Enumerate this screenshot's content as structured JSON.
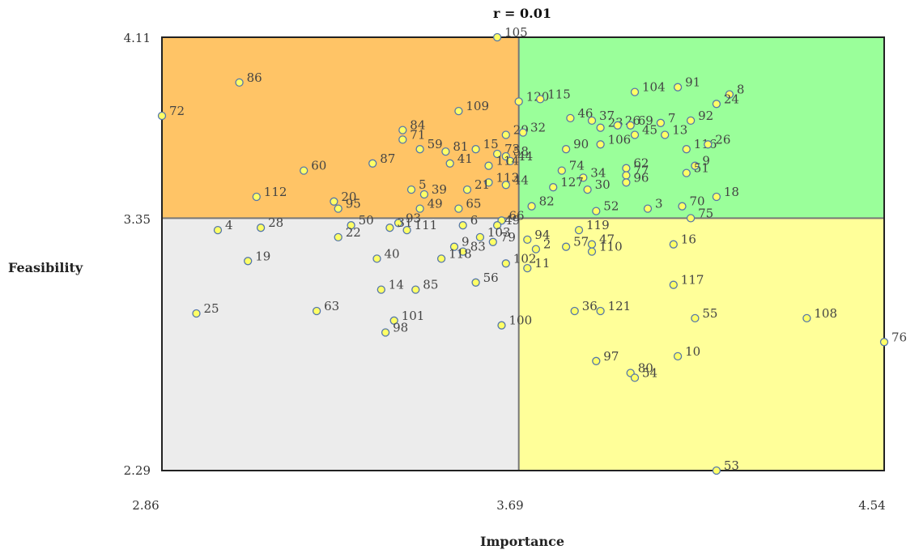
{
  "chart_data": {
    "type": "scatter",
    "title": "r = 0.01",
    "xlabel": "Importance",
    "ylabel": "Feasibility",
    "xlim": [
      2.86,
      4.54
    ],
    "ylim": [
      2.29,
      4.11
    ],
    "x_ticks": [
      "2.86",
      "3.69",
      "4.54"
    ],
    "y_ticks": [
      "4.11",
      "3.35",
      "2.29"
    ],
    "x_mean": 3.69,
    "y_mean": 3.35,
    "grid": false,
    "legend": "none",
    "quadrant_colors": {
      "top_left": "#ffc466",
      "top_right": "#9aff9a",
      "bottom_left": "#ececec",
      "bottom_right": "#ffff99"
    },
    "point_fill": "#ffff66",
    "point_stroke": "#5577aa",
    "points": [
      {
        "label": "105",
        "x": 3.64,
        "y": 4.11
      },
      {
        "label": "86",
        "x": 3.04,
        "y": 3.92
      },
      {
        "label": "72",
        "x": 2.86,
        "y": 3.78
      },
      {
        "label": "109",
        "x": 3.55,
        "y": 3.8
      },
      {
        "label": "120",
        "x": 3.69,
        "y": 3.84
      },
      {
        "label": "115",
        "x": 3.74,
        "y": 3.85
      },
      {
        "label": "104",
        "x": 3.96,
        "y": 3.88
      },
      {
        "label": "91",
        "x": 4.06,
        "y": 3.9
      },
      {
        "label": "8",
        "x": 4.18,
        "y": 3.87
      },
      {
        "label": "24",
        "x": 4.15,
        "y": 3.83
      },
      {
        "label": "84",
        "x": 3.42,
        "y": 3.72
      },
      {
        "label": "71",
        "x": 3.42,
        "y": 3.68
      },
      {
        "label": "46",
        "x": 3.81,
        "y": 3.77
      },
      {
        "label": "37",
        "x": 3.86,
        "y": 3.76
      },
      {
        "label": "23",
        "x": 3.88,
        "y": 3.73
      },
      {
        "label": "26",
        "x": 3.92,
        "y": 3.74
      },
      {
        "label": "69",
        "x": 3.95,
        "y": 3.74
      },
      {
        "label": "7",
        "x": 4.02,
        "y": 3.75
      },
      {
        "label": "92",
        "x": 4.09,
        "y": 3.76
      },
      {
        "label": "29",
        "x": 3.66,
        "y": 3.7
      },
      {
        "label": "32",
        "x": 3.7,
        "y": 3.71
      },
      {
        "label": "13",
        "x": 4.03,
        "y": 3.7
      },
      {
        "label": "45",
        "x": 3.96,
        "y": 3.7
      },
      {
        "label": "59",
        "x": 3.46,
        "y": 3.64
      },
      {
        "label": "81",
        "x": 3.52,
        "y": 3.63
      },
      {
        "label": "15",
        "x": 3.59,
        "y": 3.64
      },
      {
        "label": "73",
        "x": 3.64,
        "y": 3.62
      },
      {
        "label": "58",
        "x": 3.66,
        "y": 3.61
      },
      {
        "label": "90",
        "x": 3.8,
        "y": 3.64
      },
      {
        "label": "106",
        "x": 3.88,
        "y": 3.66
      },
      {
        "label": "116",
        "x": 4.08,
        "y": 3.64
      },
      {
        "label": "26",
        "x": 4.13,
        "y": 3.66
      },
      {
        "label": "87",
        "x": 3.35,
        "y": 3.58
      },
      {
        "label": "60",
        "x": 3.19,
        "y": 3.55
      },
      {
        "label": "41",
        "x": 3.53,
        "y": 3.58
      },
      {
        "label": "44",
        "x": 3.67,
        "y": 3.59
      },
      {
        "label": "114",
        "x": 3.62,
        "y": 3.57
      },
      {
        "label": "74",
        "x": 3.79,
        "y": 3.55
      },
      {
        "label": "62",
        "x": 3.94,
        "y": 3.56
      },
      {
        "label": "9",
        "x": 4.1,
        "y": 3.57
      },
      {
        "label": "51",
        "x": 4.08,
        "y": 3.54
      },
      {
        "label": "34",
        "x": 3.84,
        "y": 3.52
      },
      {
        "label": "77",
        "x": 3.94,
        "y": 3.53
      },
      {
        "label": "96",
        "x": 3.94,
        "y": 3.5
      },
      {
        "label": "113",
        "x": 3.62,
        "y": 3.5
      },
      {
        "label": "44",
        "x": 3.66,
        "y": 3.49
      },
      {
        "label": "127",
        "x": 3.77,
        "y": 3.48
      },
      {
        "label": "30",
        "x": 3.85,
        "y": 3.47
      },
      {
        "label": "18",
        "x": 4.15,
        "y": 3.44
      },
      {
        "label": "5",
        "x": 3.44,
        "y": 3.47
      },
      {
        "label": "39",
        "x": 3.47,
        "y": 3.45
      },
      {
        "label": "21",
        "x": 3.57,
        "y": 3.47
      },
      {
        "label": "112",
        "x": 3.08,
        "y": 3.44
      },
      {
        "label": "20",
        "x": 3.26,
        "y": 3.42
      },
      {
        "label": "95",
        "x": 3.27,
        "y": 3.39
      },
      {
        "label": "49",
        "x": 3.46,
        "y": 3.39
      },
      {
        "label": "65",
        "x": 3.55,
        "y": 3.39
      },
      {
        "label": "82",
        "x": 3.72,
        "y": 3.4
      },
      {
        "label": "52",
        "x": 3.87,
        "y": 3.38
      },
      {
        "label": "3",
        "x": 3.99,
        "y": 3.39
      },
      {
        "label": "70",
        "x": 4.07,
        "y": 3.4
      },
      {
        "label": "75",
        "x": 4.09,
        "y": 3.35
      },
      {
        "label": "4",
        "x": 2.99,
        "y": 3.3
      },
      {
        "label": "28",
        "x": 3.09,
        "y": 3.31
      },
      {
        "label": "50",
        "x": 3.3,
        "y": 3.32
      },
      {
        "label": "93",
        "x": 3.41,
        "y": 3.33
      },
      {
        "label": "31",
        "x": 3.39,
        "y": 3.31
      },
      {
        "label": "111",
        "x": 3.43,
        "y": 3.3
      },
      {
        "label": "22",
        "x": 3.27,
        "y": 3.27
      },
      {
        "label": "6",
        "x": 3.56,
        "y": 3.32
      },
      {
        "label": "66",
        "x": 3.65,
        "y": 3.34
      },
      {
        "label": "49",
        "x": 3.64,
        "y": 3.32
      },
      {
        "label": "119",
        "x": 3.83,
        "y": 3.3
      },
      {
        "label": "103",
        "x": 3.6,
        "y": 3.27
      },
      {
        "label": "79",
        "x": 3.63,
        "y": 3.25
      },
      {
        "label": "94",
        "x": 3.71,
        "y": 3.26
      },
      {
        "label": "9",
        "x": 3.54,
        "y": 3.23
      },
      {
        "label": "83",
        "x": 3.56,
        "y": 3.21
      },
      {
        "label": "2",
        "x": 3.73,
        "y": 3.22
      },
      {
        "label": "57",
        "x": 3.8,
        "y": 3.23
      },
      {
        "label": "47",
        "x": 3.86,
        "y": 3.24
      },
      {
        "label": "110",
        "x": 3.86,
        "y": 3.21
      },
      {
        "label": "16",
        "x": 4.05,
        "y": 3.24
      },
      {
        "label": "19",
        "x": 3.06,
        "y": 3.17
      },
      {
        "label": "40",
        "x": 3.36,
        "y": 3.18
      },
      {
        "label": "118",
        "x": 3.51,
        "y": 3.18
      },
      {
        "label": "102",
        "x": 3.66,
        "y": 3.16
      },
      {
        "label": "11",
        "x": 3.71,
        "y": 3.14
      },
      {
        "label": "117",
        "x": 4.05,
        "y": 3.07
      },
      {
        "label": "14",
        "x": 3.37,
        "y": 3.05
      },
      {
        "label": "85",
        "x": 3.45,
        "y": 3.05
      },
      {
        "label": "56",
        "x": 3.59,
        "y": 3.08
      },
      {
        "label": "25",
        "x": 2.94,
        "y": 2.95
      },
      {
        "label": "63",
        "x": 3.22,
        "y": 2.96
      },
      {
        "label": "36",
        "x": 3.82,
        "y": 2.96
      },
      {
        "label": "121",
        "x": 3.88,
        "y": 2.96
      },
      {
        "label": "55",
        "x": 4.1,
        "y": 2.93
      },
      {
        "label": "108",
        "x": 4.36,
        "y": 2.93
      },
      {
        "label": "76",
        "x": 4.54,
        "y": 2.83
      },
      {
        "label": "101",
        "x": 3.4,
        "y": 2.92
      },
      {
        "label": "98",
        "x": 3.38,
        "y": 2.87
      },
      {
        "label": "100",
        "x": 3.65,
        "y": 2.9
      },
      {
        "label": "97",
        "x": 3.87,
        "y": 2.75
      },
      {
        "label": "10",
        "x": 4.06,
        "y": 2.77
      },
      {
        "label": "80",
        "x": 3.95,
        "y": 2.7
      },
      {
        "label": "54",
        "x": 3.96,
        "y": 2.68
      },
      {
        "label": "53",
        "x": 4.15,
        "y": 2.29
      }
    ]
  }
}
